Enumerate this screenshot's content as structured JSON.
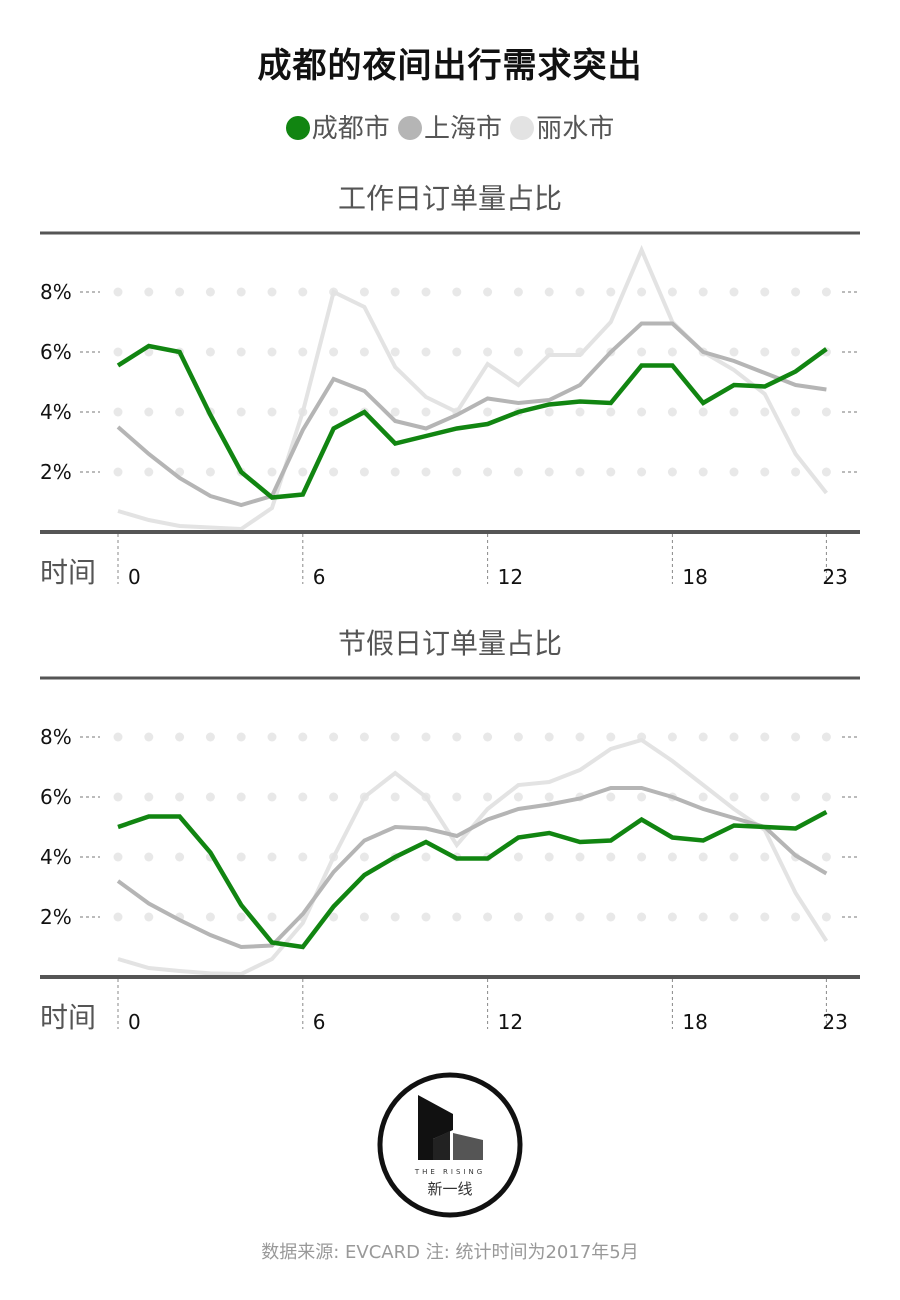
{
  "header": {
    "title": "成都的夜间出行需求突出"
  },
  "legend": [
    {
      "name": "成都市",
      "color": "#118511"
    },
    {
      "name": "上海市",
      "color": "#b5b5b5"
    },
    {
      "name": "丽水市",
      "color": "#e3e3e3"
    }
  ],
  "axis_title": "时间",
  "chart_data": [
    {
      "type": "line",
      "title": "工作日订单量占比",
      "xlabel": "时间",
      "ylabel": "",
      "x": [
        0,
        1,
        2,
        3,
        4,
        5,
        6,
        7,
        8,
        9,
        10,
        11,
        12,
        13,
        14,
        15,
        16,
        17,
        18,
        19,
        20,
        21,
        22,
        23
      ],
      "xticks": [
        "0",
        "6",
        "12",
        "18",
        "23"
      ],
      "yticks": [
        "2%",
        "4%",
        "6%",
        "8%"
      ],
      "ylim": [
        0,
        10
      ],
      "grid": "dotted",
      "series": [
        {
          "name": "丽水市",
          "values": [
            0.7,
            0.4,
            0.2,
            0.15,
            0.1,
            0.8,
            4.0,
            8.0,
            7.5,
            5.5,
            4.5,
            4.0,
            5.6,
            4.9,
            5.9,
            5.9,
            7.0,
            9.4,
            7.0,
            6.0,
            5.4,
            4.6,
            2.6,
            1.3
          ]
        },
        {
          "name": "上海市",
          "values": [
            3.5,
            2.6,
            1.8,
            1.2,
            0.9,
            1.2,
            3.4,
            5.1,
            4.7,
            3.7,
            3.45,
            3.9,
            4.45,
            4.3,
            4.4,
            4.9,
            6.0,
            6.95,
            6.95,
            6.0,
            5.7,
            5.3,
            4.9,
            4.75
          ]
        },
        {
          "name": "成都市",
          "values": [
            5.55,
            6.2,
            6.0,
            3.9,
            2.0,
            1.15,
            1.25,
            3.45,
            4.0,
            2.95,
            3.2,
            3.45,
            3.6,
            4.0,
            4.25,
            4.35,
            4.3,
            5.55,
            5.55,
            4.3,
            4.9,
            4.85,
            5.35,
            6.1
          ]
        }
      ]
    },
    {
      "type": "line",
      "title": "节假日订单量占比",
      "xlabel": "时间",
      "ylabel": "",
      "x": [
        0,
        1,
        2,
        3,
        4,
        5,
        6,
        7,
        8,
        9,
        10,
        11,
        12,
        13,
        14,
        15,
        16,
        17,
        18,
        19,
        20,
        21,
        22,
        23
      ],
      "xticks": [
        "0",
        "6",
        "12",
        "18",
        "23"
      ],
      "yticks": [
        "2%",
        "4%",
        "6%",
        "8%"
      ],
      "ylim": [
        0,
        10
      ],
      "grid": "dotted",
      "series": [
        {
          "name": "丽水市",
          "values": [
            0.6,
            0.3,
            0.2,
            0.12,
            0.1,
            0.6,
            1.8,
            4.0,
            6.0,
            6.8,
            6.0,
            4.4,
            5.6,
            6.4,
            6.5,
            6.9,
            7.6,
            7.9,
            7.2,
            6.4,
            5.6,
            4.9,
            2.8,
            1.2
          ]
        },
        {
          "name": "上海市",
          "values": [
            3.2,
            2.45,
            1.9,
            1.4,
            1.0,
            1.05,
            2.1,
            3.5,
            4.55,
            5.0,
            4.95,
            4.7,
            5.25,
            5.6,
            5.75,
            5.95,
            6.3,
            6.3,
            6.0,
            5.6,
            5.3,
            5.0,
            4.05,
            3.45
          ]
        },
        {
          "name": "成都市",
          "values": [
            5.0,
            5.35,
            5.35,
            4.15,
            2.4,
            1.15,
            1.0,
            2.35,
            3.4,
            4.0,
            4.5,
            3.95,
            3.95,
            4.65,
            4.8,
            4.5,
            4.55,
            5.25,
            4.65,
            4.55,
            5.05,
            5.0,
            4.95,
            5.5
          ]
        }
      ]
    }
  ],
  "logo": {
    "tagline": "THE RISING",
    "name": "新一线"
  },
  "footer": {
    "note": "数据来源: EVCARD  注: 统计时间为2017年5月"
  }
}
